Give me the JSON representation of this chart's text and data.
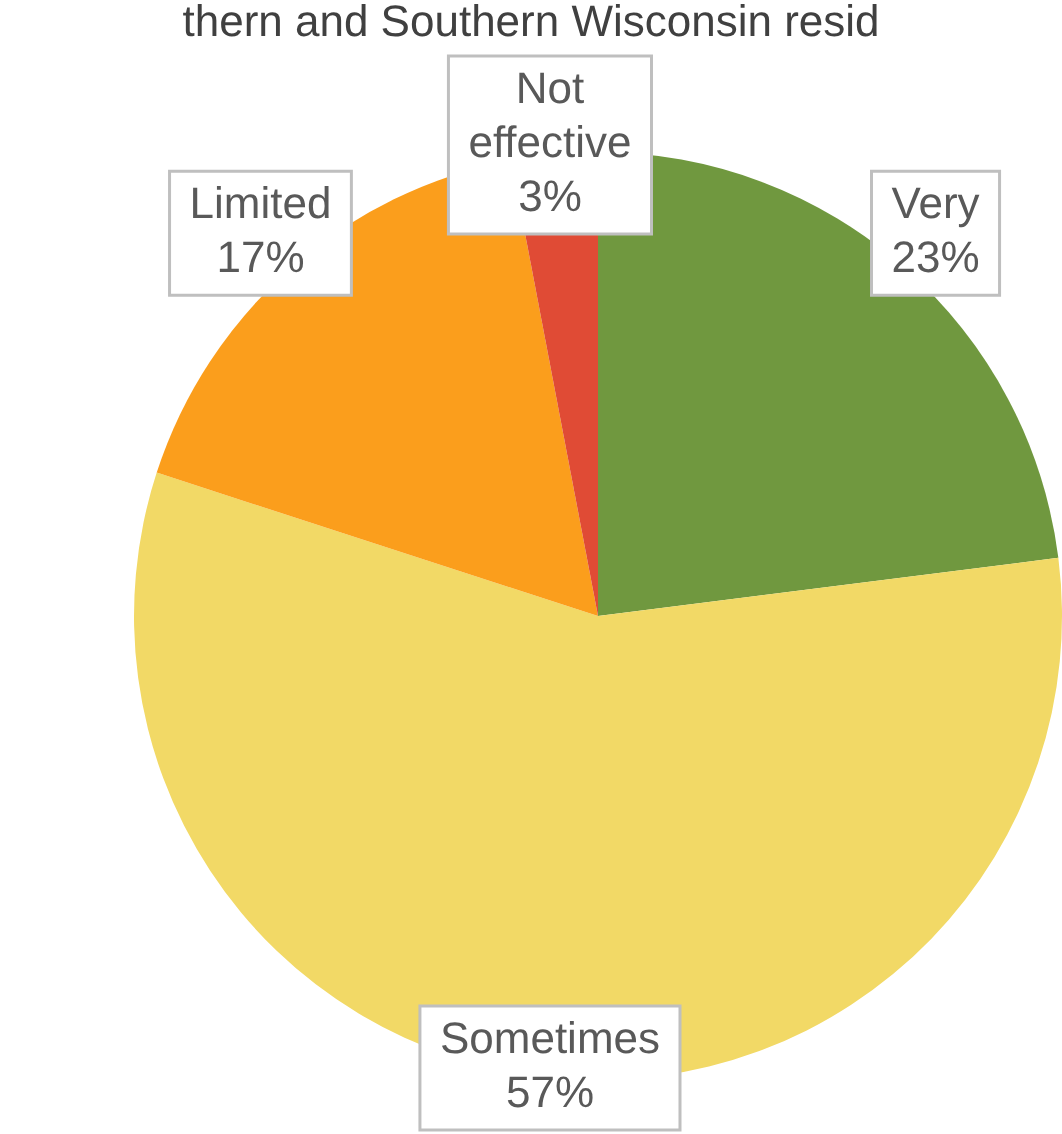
{
  "chart_data": {
    "type": "pie",
    "title": "thern and Southern Wisconsin resid",
    "categories": [
      "Very",
      "Sometimes",
      "Limited",
      "Not effective"
    ],
    "values": [
      23,
      57,
      17,
      3
    ],
    "value_labels": [
      "23%",
      "57%",
      "17%",
      "3%"
    ],
    "colors": [
      "#70983f",
      "#f2d966",
      "#fb9e1c",
      "#e04b35"
    ],
    "legend": false
  }
}
